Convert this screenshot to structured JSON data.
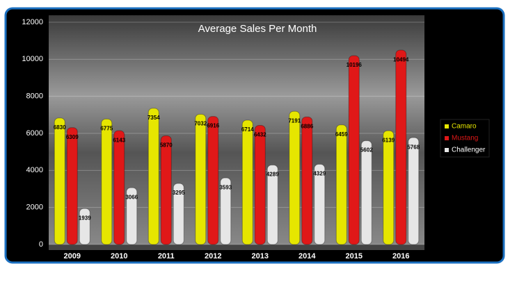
{
  "chart_data": {
    "type": "bar",
    "title": "Average Sales Per Month",
    "categories": [
      "2009",
      "2010",
      "2011",
      "2012",
      "2013",
      "2014",
      "2015",
      "2016"
    ],
    "series": [
      {
        "name": "Camaro",
        "color": "#e6e600",
        "values": [
          6830,
          6775,
          7354,
          7032,
          6714,
          7191,
          6459,
          6139
        ]
      },
      {
        "name": "Mustang",
        "color": "#e01818",
        "values": [
          6309,
          6143,
          5870,
          6916,
          6432,
          6886,
          10196,
          10494
        ]
      },
      {
        "name": "Challenger",
        "color": "#e6e6e6",
        "values": [
          1939,
          3066,
          3295,
          3593,
          4289,
          4329,
          5602,
          5768
        ]
      }
    ],
    "ylim": [
      0,
      12000
    ],
    "yticks": [
      0,
      2000,
      4000,
      6000,
      8000,
      10000,
      12000
    ],
    "grid": true,
    "legend": "right"
  }
}
